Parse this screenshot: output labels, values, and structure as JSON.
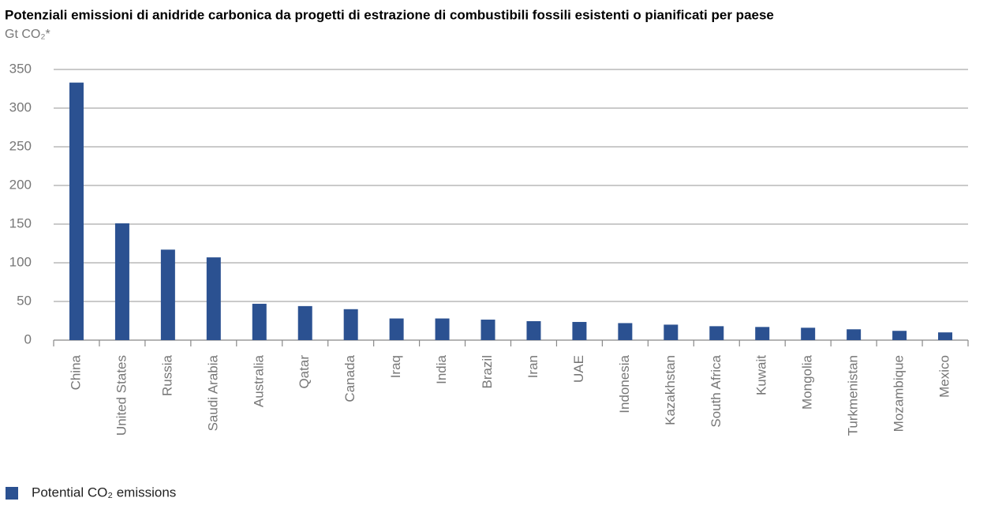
{
  "chart_data": {
    "type": "bar",
    "title": "Potenziali emissioni di anidride carbonica da progetti di estrazione di combustibili fossili esistenti o pianificati per paese",
    "subtitle": "Gt CO₂*",
    "categories": [
      "China",
      "United States",
      "Russia",
      "Saudi Arabia",
      "Australia",
      "Qatar",
      "Canada",
      "Iraq",
      "India",
      "Brazil",
      "Iran",
      "UAE",
      "Indonesia",
      "Kazakhstan",
      "South Africa",
      "Kuwait",
      "Mongolia",
      "Turkmenistan",
      "Mozambique",
      "Mexico"
    ],
    "series": [
      {
        "name": "Potential CO₂ emissions",
        "color": "#2b5191",
        "values": [
          333,
          151,
          117,
          107,
          47,
          44,
          40,
          28,
          28,
          26.5,
          24.5,
          23.5,
          22,
          20,
          18,
          17,
          16,
          14,
          12,
          10
        ]
      }
    ],
    "ylim": [
      0,
      350
    ],
    "yticks": [
      0,
      50,
      100,
      150,
      200,
      250,
      300,
      350
    ],
    "grid": true
  }
}
